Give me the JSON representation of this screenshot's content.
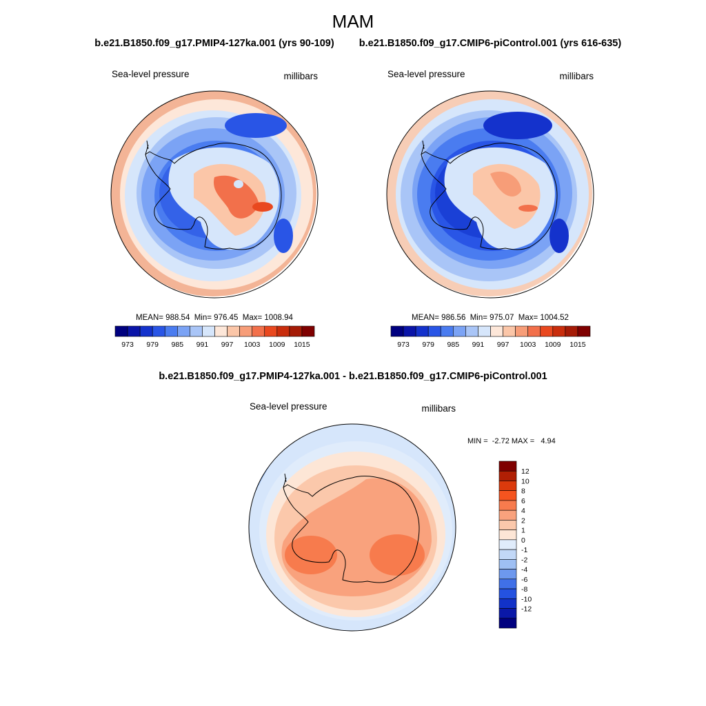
{
  "figure": {
    "title": "MAM"
  },
  "panels": [
    {
      "id": "test",
      "title": "b.e21.B1850.f09_g17.PMIP4-127ka.001 (yrs 90-109)",
      "left_label": "Sea-level pressure",
      "right_label": "millibars",
      "stats": "MEAN= 988.54  Min= 976.45  Max= 1008.94",
      "mean": 988.54,
      "min": 976.45,
      "max": 1008.94
    },
    {
      "id": "control",
      "title": "b.e21.B1850.f09_g17.CMIP6-piControl.001 (yrs 616-635)",
      "left_label": "Sea-level pressure",
      "right_label": "millibars",
      "stats": "MEAN= 986.56  Min= 975.07  Max= 1004.52",
      "mean": 986.56,
      "min": 975.07,
      "max": 1004.52
    },
    {
      "id": "difference",
      "title": "b.e21.B1850.f09_g17.PMIP4-127ka.001 - b.e21.B1850.f09_g17.CMIP6-piControl.001",
      "left_label": "Sea-level pressure",
      "right_label": "millibars",
      "stats": "MIN =  -2.72 MAX =   4.94",
      "min": -2.72,
      "max": 4.94
    }
  ],
  "colorbar_abs": {
    "colors": [
      "#00007f",
      "#0a14a8",
      "#1432cc",
      "#2955e6",
      "#4a7cf0",
      "#7ba3f5",
      "#a9c5f7",
      "#d6e6fb",
      "#fde7d9",
      "#fbc6a8",
      "#f79d78",
      "#f2704b",
      "#e9481f",
      "#c92d0c",
      "#a51b06",
      "#7f0000"
    ],
    "tick_labels": [
      "973",
      "979",
      "985",
      "991",
      "997",
      "1003",
      "1009",
      "1015"
    ]
  },
  "colorbar_diff": {
    "colors_top_to_bottom": [
      "#7f0000",
      "#b01f04",
      "#dc3a0c",
      "#f5541f",
      "#f77b4d",
      "#f9a27d",
      "#fbc8ab",
      "#fde6d6",
      "#e0ecfb",
      "#c2d8f7",
      "#9ebff3",
      "#6d98ee",
      "#4070e8",
      "#2452e0",
      "#1232c8",
      "#0a18a8",
      "#00007f"
    ],
    "tick_labels_top_to_bottom": [
      "12",
      "10",
      "8",
      "6",
      "4",
      "2",
      "1",
      "0",
      "-1",
      "-2",
      "-4",
      "-6",
      "-8",
      "-10",
      "-12"
    ]
  },
  "map_fields": {
    "ring_colors_test": [
      "#f3b496",
      "#fde7d9",
      "#d6e6fb",
      "#a9c5f7",
      "#7ba3f5",
      "#4a7cf0",
      "#3462e8"
    ],
    "ring_colors_control": [
      "#f7cdb6",
      "#d6e6fb",
      "#a9c5f7",
      "#7ba3f5",
      "#4a7cf0",
      "#2955e6",
      "#1a40d6"
    ],
    "ring_colors_diff": [
      "#d6e6fb",
      "#e0ecfb",
      "#fde6d6",
      "#fbc8ab",
      "#f9a27d"
    ]
  }
}
